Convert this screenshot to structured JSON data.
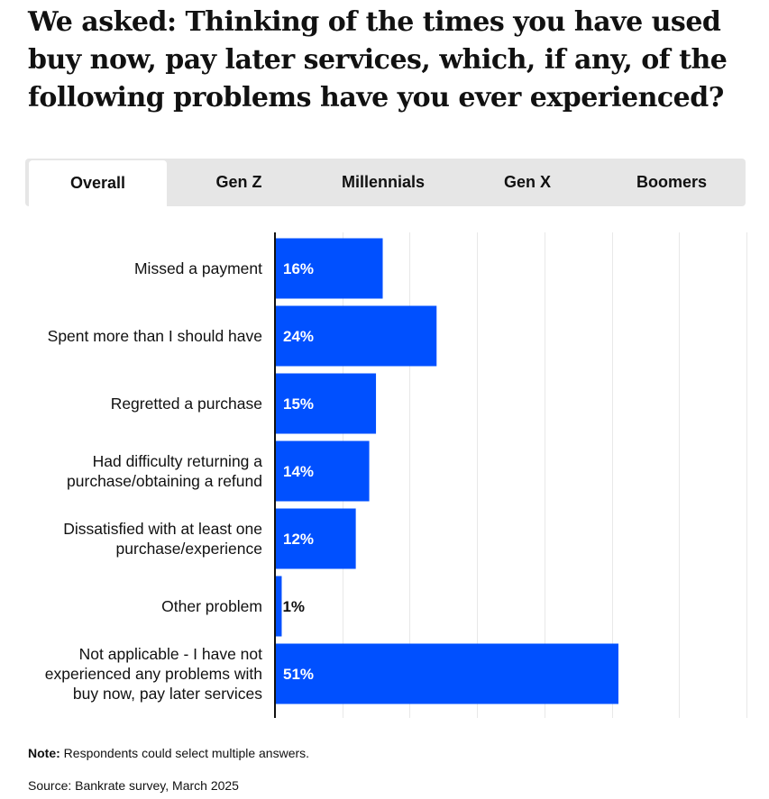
{
  "title": "We asked: Thinking of the times you have used buy now, pay later services, which, if any, of the following problems have you ever experienced?",
  "tabs": [
    "Overall",
    "Gen Z",
    "Millennials",
    "Gen X",
    "Boomers"
  ],
  "active_tab": "Overall",
  "colors": {
    "bar": "#0050ff",
    "grid": "#e8e8e8",
    "axis": "#111111",
    "tab_bg": "#e6e6e6"
  },
  "chart_data": {
    "type": "bar",
    "orientation": "horizontal",
    "categories": [
      [
        "Missed a payment"
      ],
      [
        "Spent more than I should have"
      ],
      [
        "Regretted a purchase"
      ],
      [
        "Had difficulty returning a",
        "purchase/obtaining a refund"
      ],
      [
        "Dissatisfied with at least one",
        "purchase/experience"
      ],
      [
        "Other problem"
      ],
      [
        "Not applicable - I have not",
        "experienced any problems with",
        "buy now, pay later services"
      ]
    ],
    "values": [
      16,
      24,
      15,
      14,
      12,
      1,
      51
    ],
    "data_labels": [
      "16%",
      "24%",
      "15%",
      "14%",
      "12%",
      "1%",
      "51%"
    ],
    "xlim": [
      0,
      70
    ],
    "grid": true
  },
  "note": {
    "label": "Note:",
    "text": " Respondents could select multiple answers."
  },
  "source": "Source: Bankrate survey, March 2025"
}
